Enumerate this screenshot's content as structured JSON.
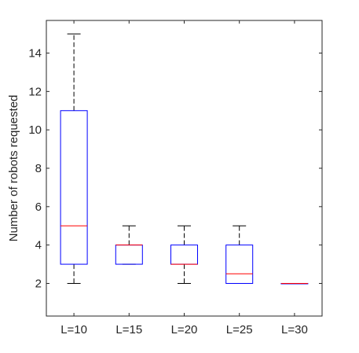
{
  "chart_data": {
    "type": "boxplot",
    "title": "",
    "xlabel": "",
    "ylabel": "Number of robots requested",
    "ylim": [
      0.3,
      15.7
    ],
    "yticks": [
      2,
      4,
      6,
      8,
      10,
      12,
      14
    ],
    "grid": false,
    "categories": [
      "L=10",
      "L=15",
      "L=20",
      "L=25",
      "L=30"
    ],
    "boxes": [
      {
        "category": "L=10",
        "whisker_low": 2,
        "q1": 3,
        "median": 5,
        "q3": 11,
        "whisker_high": 15
      },
      {
        "category": "L=15",
        "whisker_low": 3,
        "q1": 3,
        "median": 4,
        "q3": 4,
        "whisker_high": 5
      },
      {
        "category": "L=20",
        "whisker_low": 2,
        "q1": 3,
        "median": 3,
        "q3": 4,
        "whisker_high": 5
      },
      {
        "category": "L=25",
        "whisker_low": 2,
        "q1": 2,
        "median": 2.5,
        "q3": 4,
        "whisker_high": 5
      },
      {
        "category": "L=30",
        "whisker_low": 2,
        "q1": 2,
        "median": 2,
        "q3": 2,
        "whisker_high": 2
      }
    ],
    "colors": {
      "box": "#0000ff",
      "median": "#ff0000",
      "whisker": "#000000",
      "axis": "#262626"
    }
  }
}
